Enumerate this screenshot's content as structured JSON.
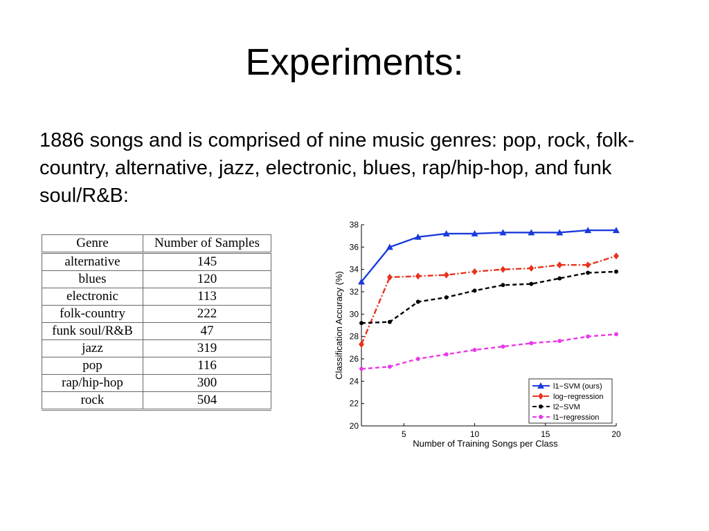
{
  "slide": {
    "title": "Experiments:",
    "body": "1886 songs and is comprised of nine music genres: pop, rock, folk-country, alternative, jazz, electronic, blues, rap/hip-hop, and funk soul/R&B:"
  },
  "table": {
    "headers": [
      "Genre",
      "Number of Samples"
    ],
    "rows": [
      [
        "alternative",
        "145"
      ],
      [
        "blues",
        "120"
      ],
      [
        "electronic",
        "113"
      ],
      [
        "folk-country",
        "222"
      ],
      [
        "funk soul/R&B",
        "47"
      ],
      [
        "jazz",
        "319"
      ],
      [
        "pop",
        "116"
      ],
      [
        "rap/hip-hop",
        "300"
      ],
      [
        "rock",
        "504"
      ]
    ]
  },
  "chart_data": {
    "type": "line",
    "title": "",
    "xlabel": "Number of Training Songs per Class",
    "ylabel": "Classification Accuracy (%)",
    "xlim": [
      2,
      20
    ],
    "ylim": [
      20,
      38
    ],
    "xticks": [
      5,
      10,
      15,
      20
    ],
    "yticks": [
      20,
      22,
      24,
      26,
      28,
      30,
      32,
      34,
      36,
      38
    ],
    "grid": false,
    "legend_position": "bottom-right",
    "x": [
      2,
      4,
      6,
      8,
      10,
      12,
      14,
      16,
      18,
      20
    ],
    "series": [
      {
        "name": "l1−SVM (ours)",
        "color": "#1a3adb",
        "dash": "solid",
        "marker": "triangle",
        "values": [
          32.9,
          36.0,
          36.9,
          37.2,
          37.2,
          37.3,
          37.3,
          37.3,
          37.5,
          37.5
        ]
      },
      {
        "name": "log−regression",
        "color": "#e8321e",
        "dash": "dashdot",
        "marker": "diamond",
        "values": [
          27.3,
          33.3,
          33.4,
          33.5,
          33.8,
          34.0,
          34.1,
          34.4,
          34.4,
          35.2
        ]
      },
      {
        "name": "l2−SVM",
        "color": "#000000",
        "dash": "dashed",
        "marker": "dot",
        "values": [
          29.2,
          29.3,
          31.1,
          31.5,
          32.1,
          32.6,
          32.7,
          33.2,
          33.7,
          33.8
        ]
      },
      {
        "name": "l1−regression",
        "color": "#e83ae8",
        "dash": "dashed",
        "marker": "dot",
        "values": [
          25.1,
          25.3,
          26.0,
          26.4,
          26.8,
          27.1,
          27.4,
          27.6,
          28.0,
          28.2
        ]
      }
    ]
  }
}
